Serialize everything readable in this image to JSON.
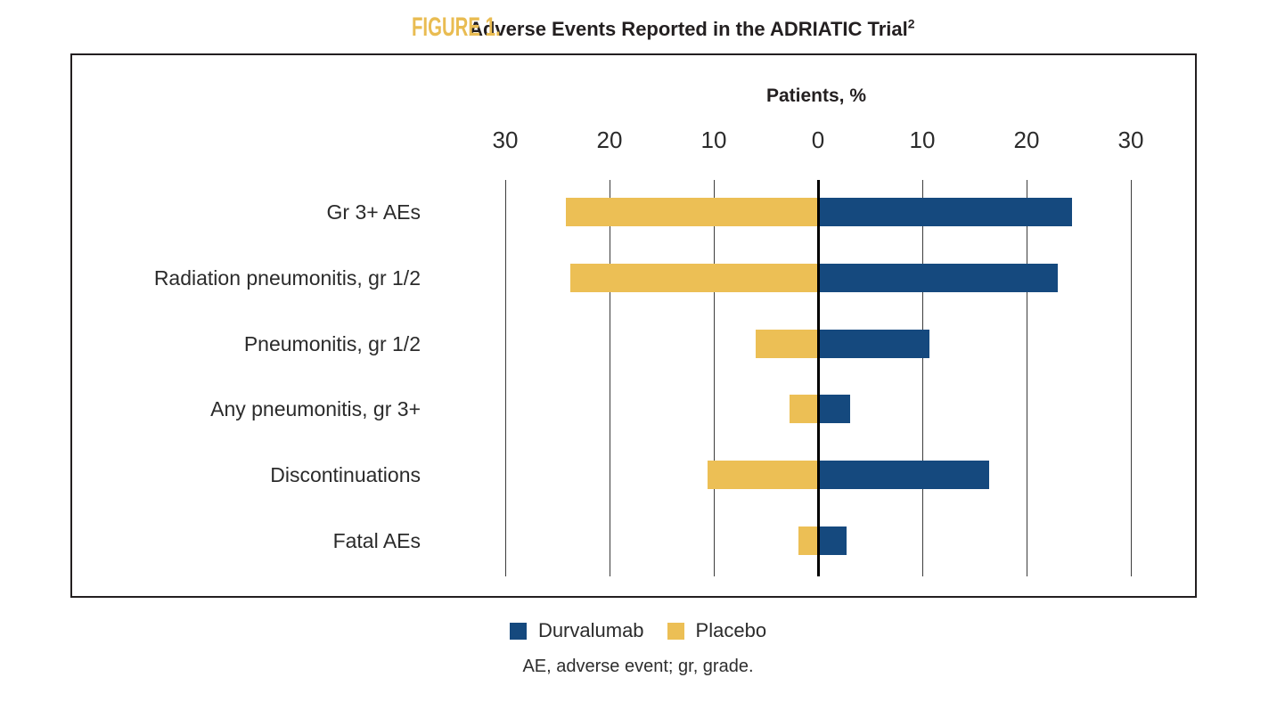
{
  "header": {
    "figure_label": "FIGURE 1.",
    "title": "Adverse Events Reported in the ADRIATIC Trial",
    "title_superscript": "2"
  },
  "chart_data": {
    "type": "bar",
    "variant": "diverging-horizontal",
    "axis_title": "Patients, %",
    "categories": [
      "Gr 3+ AEs",
      "Radiation pneumonitis, gr 1/2",
      "Pneumonitis, gr 1/2",
      "Any pneumonitis, gr 3+",
      "Discontinuations",
      "Fatal AEs"
    ],
    "series": [
      {
        "name": "Durvalumab",
        "color": "#15497E",
        "side": "right",
        "values": [
          24.4,
          23.0,
          10.7,
          3.1,
          16.4,
          2.7
        ]
      },
      {
        "name": "Placebo",
        "color": "#ECBF55",
        "side": "left",
        "values": [
          24.2,
          23.8,
          6.0,
          2.7,
          10.6,
          1.9
        ]
      }
    ],
    "x_tick_values": [
      -30,
      -20,
      -10,
      0,
      10,
      20,
      30
    ],
    "x_tick_labels": [
      "30",
      "20",
      "10",
      "0",
      "10",
      "20",
      "30"
    ],
    "xlim": [
      -30,
      30
    ],
    "grid": true,
    "zero_line": true,
    "legend_position": "bottom"
  },
  "legend": {
    "items": [
      {
        "label": "Durvalumab",
        "color": "#15497E"
      },
      {
        "label": "Placebo",
        "color": "#ECBF55"
      }
    ]
  },
  "footnote": "AE, adverse event; gr, grade.",
  "colors": {
    "durvalumab_blue": "#15497E",
    "placebo_gold": "#ECBF55",
    "figure_label_gold": "#E9BC52",
    "text_dark": "#2B2B2B",
    "gridline": "#3C3C3C"
  }
}
